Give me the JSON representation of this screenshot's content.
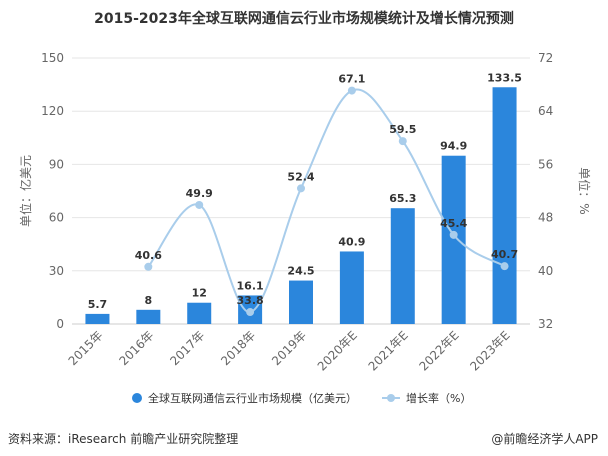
{
  "title": "2015-2023年全球互联网通信云行业市场规模统计及增长情况预测",
  "source": "资料来源：iResearch 前瞻产业研究院整理",
  "brand": "@前瞻经济学人APP",
  "colors": {
    "bar": "#2B86DC",
    "line": "#A9CDEB",
    "grid": "#E6E6E6",
    "axis": "#CCCCCC"
  },
  "chart_data": {
    "type": "bar",
    "categories": [
      "2015年",
      "2016年",
      "2017年",
      "2018年",
      "2019年",
      "2020年E",
      "2021年E",
      "2022年E",
      "2023年E"
    ],
    "series": [
      {
        "name": "全球互联网通信云行业市场规模（亿美元）",
        "type": "bar",
        "axis": "left",
        "values": [
          5.7,
          8,
          12,
          16.1,
          24.5,
          40.9,
          65.3,
          94.9,
          133.5
        ]
      },
      {
        "name": "增长率（%）",
        "type": "line",
        "axis": "right",
        "values": [
          null,
          40.6,
          49.9,
          33.8,
          52.4,
          67.1,
          59.5,
          45.4,
          40.7
        ]
      }
    ],
    "bar_labels": [
      "5.7",
      "8",
      "12",
      "16.1",
      "24.5",
      "40.9",
      "65.3",
      "94.9",
      "133.5"
    ],
    "line_labels": [
      "",
      "40.6",
      "49.9",
      "33.8",
      "52.4",
      "67.1",
      "59.5",
      "45.4",
      "40.7"
    ],
    "ylabel_left": "单位：亿美元",
    "ylabel_right": "单位：%",
    "ylim_left": [
      0,
      150
    ],
    "yticks_left": [
      0,
      30,
      60,
      90,
      120,
      150
    ],
    "ylim_right": [
      32,
      72
    ],
    "yticks_right": [
      32,
      40,
      48,
      56,
      64,
      72
    ],
    "grid": true,
    "legend_position": "bottom"
  }
}
